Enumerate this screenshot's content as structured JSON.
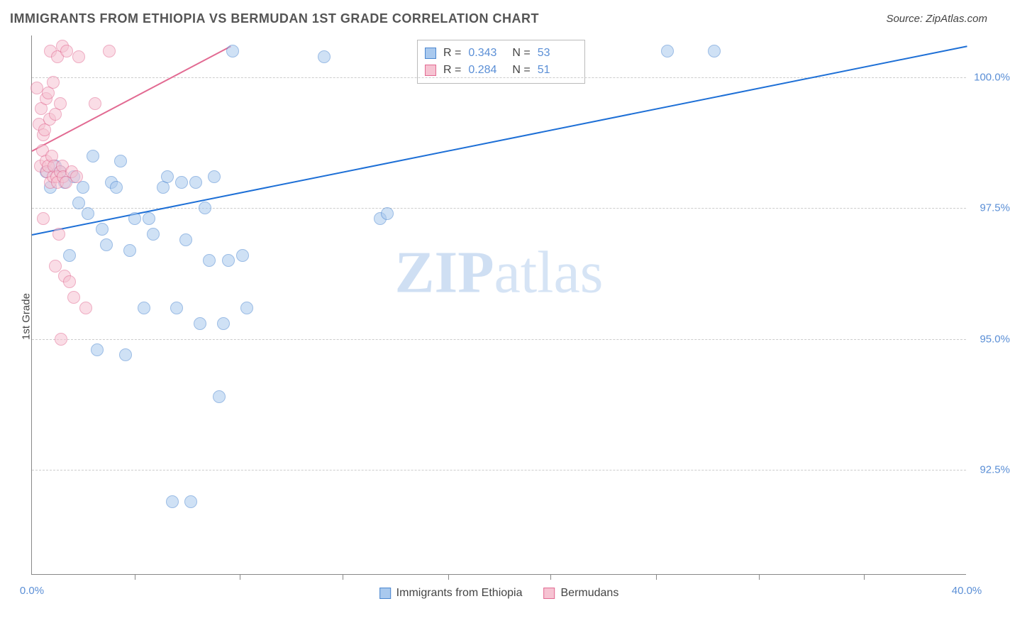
{
  "header": {
    "title": "IMMIGRANTS FROM ETHIOPIA VS BERMUDAN 1ST GRADE CORRELATION CHART",
    "source": "Source: ZipAtlas.com"
  },
  "chart": {
    "type": "scatter",
    "y_axis_label": "1st Grade",
    "background_color": "#ffffff",
    "grid_color": "#cccccc",
    "axis_color": "#888888",
    "tick_label_color": "#5b8fd6",
    "axis_text_color": "#444444",
    "xlim": [
      0.0,
      40.0
    ],
    "ylim": [
      90.5,
      100.8
    ],
    "x_ticks": [
      0.0,
      40.0
    ],
    "x_tick_labels": [
      "0.0%",
      "40.0%"
    ],
    "x_minor_ticks": [
      4.4,
      8.9,
      13.3,
      17.8,
      22.2,
      26.7,
      31.1,
      35.6
    ],
    "y_ticks": [
      92.5,
      95.0,
      97.5,
      100.0
    ],
    "y_tick_labels": [
      "92.5%",
      "95.0%",
      "97.5%",
      "100.0%"
    ],
    "watermark": {
      "zip": "ZIP",
      "atlas": "atlas"
    },
    "point_radius": 9,
    "point_opacity": 0.55,
    "series": [
      {
        "name": "Immigrants from Ethiopia",
        "color_fill": "#a9c9ee",
        "color_stroke": "#4a86d0",
        "R": "0.343",
        "N": "53",
        "trend": {
          "x1": 0.0,
          "y1": 97.0,
          "x2": 40.0,
          "y2": 100.6,
          "color": "#1d6fd6",
          "width": 2
        },
        "points": [
          [
            0.6,
            98.2
          ],
          [
            0.8,
            97.9
          ],
          [
            1.0,
            98.3
          ],
          [
            1.2,
            98.2
          ],
          [
            1.4,
            98.0
          ],
          [
            1.6,
            96.6
          ],
          [
            1.8,
            98.1
          ],
          [
            2.0,
            97.6
          ],
          [
            2.2,
            97.9
          ],
          [
            2.4,
            97.4
          ],
          [
            2.6,
            98.5
          ],
          [
            2.8,
            94.8
          ],
          [
            3.0,
            97.1
          ],
          [
            3.2,
            96.8
          ],
          [
            3.4,
            98.0
          ],
          [
            3.6,
            97.9
          ],
          [
            3.8,
            98.4
          ],
          [
            4.0,
            94.7
          ],
          [
            4.2,
            96.7
          ],
          [
            4.4,
            97.3
          ],
          [
            4.8,
            95.6
          ],
          [
            5.0,
            97.3
          ],
          [
            5.2,
            97.0
          ],
          [
            5.6,
            97.9
          ],
          [
            5.8,
            98.1
          ],
          [
            6.0,
            91.9
          ],
          [
            6.2,
            95.6
          ],
          [
            6.4,
            98.0
          ],
          [
            6.6,
            96.9
          ],
          [
            6.8,
            91.9
          ],
          [
            7.0,
            98.0
          ],
          [
            7.2,
            95.3
          ],
          [
            7.4,
            97.5
          ],
          [
            7.6,
            96.5
          ],
          [
            7.8,
            98.1
          ],
          [
            8.0,
            93.9
          ],
          [
            8.2,
            95.3
          ],
          [
            8.4,
            96.5
          ],
          [
            8.6,
            100.5
          ],
          [
            9.0,
            96.6
          ],
          [
            9.2,
            95.6
          ],
          [
            12.5,
            100.4
          ],
          [
            14.9,
            97.3
          ],
          [
            15.2,
            97.4
          ],
          [
            27.2,
            100.5
          ],
          [
            29.2,
            100.5
          ]
        ]
      },
      {
        "name": "Bermudans",
        "color_fill": "#f6c3d2",
        "color_stroke": "#e26a92",
        "R": "0.284",
        "N": "51",
        "trend": {
          "x1": 0.0,
          "y1": 98.6,
          "x2": 8.5,
          "y2": 100.6,
          "color": "#e26a92",
          "width": 2
        },
        "points": [
          [
            0.2,
            99.8
          ],
          [
            0.3,
            99.1
          ],
          [
            0.35,
            98.3
          ],
          [
            0.4,
            99.4
          ],
          [
            0.45,
            98.6
          ],
          [
            0.5,
            97.3
          ],
          [
            0.5,
            98.9
          ],
          [
            0.55,
            99.0
          ],
          [
            0.6,
            98.4
          ],
          [
            0.6,
            99.6
          ],
          [
            0.65,
            98.2
          ],
          [
            0.7,
            99.7
          ],
          [
            0.7,
            98.3
          ],
          [
            0.75,
            99.2
          ],
          [
            0.8,
            100.5
          ],
          [
            0.8,
            98.0
          ],
          [
            0.85,
            98.5
          ],
          [
            0.9,
            99.9
          ],
          [
            0.9,
            98.1
          ],
          [
            0.95,
            98.3
          ],
          [
            1.0,
            96.4
          ],
          [
            1.0,
            99.3
          ],
          [
            1.05,
            98.1
          ],
          [
            1.1,
            100.4
          ],
          [
            1.1,
            98.0
          ],
          [
            1.15,
            97.0
          ],
          [
            1.2,
            98.2
          ],
          [
            1.2,
            99.5
          ],
          [
            1.25,
            95.0
          ],
          [
            1.3,
            100.6
          ],
          [
            1.3,
            98.3
          ],
          [
            1.35,
            98.1
          ],
          [
            1.4,
            96.2
          ],
          [
            1.45,
            98.0
          ],
          [
            1.5,
            100.5
          ],
          [
            1.6,
            96.1
          ],
          [
            1.7,
            98.2
          ],
          [
            1.8,
            95.8
          ],
          [
            1.9,
            98.1
          ],
          [
            2.0,
            100.4
          ],
          [
            2.3,
            95.6
          ],
          [
            2.7,
            99.5
          ],
          [
            3.3,
            100.5
          ]
        ]
      }
    ],
    "corr_legend": {
      "r_label": "R =",
      "n_label": "N ="
    },
    "bottom_legend": {
      "items": [
        "Immigrants from Ethiopia",
        "Bermudans"
      ]
    }
  }
}
